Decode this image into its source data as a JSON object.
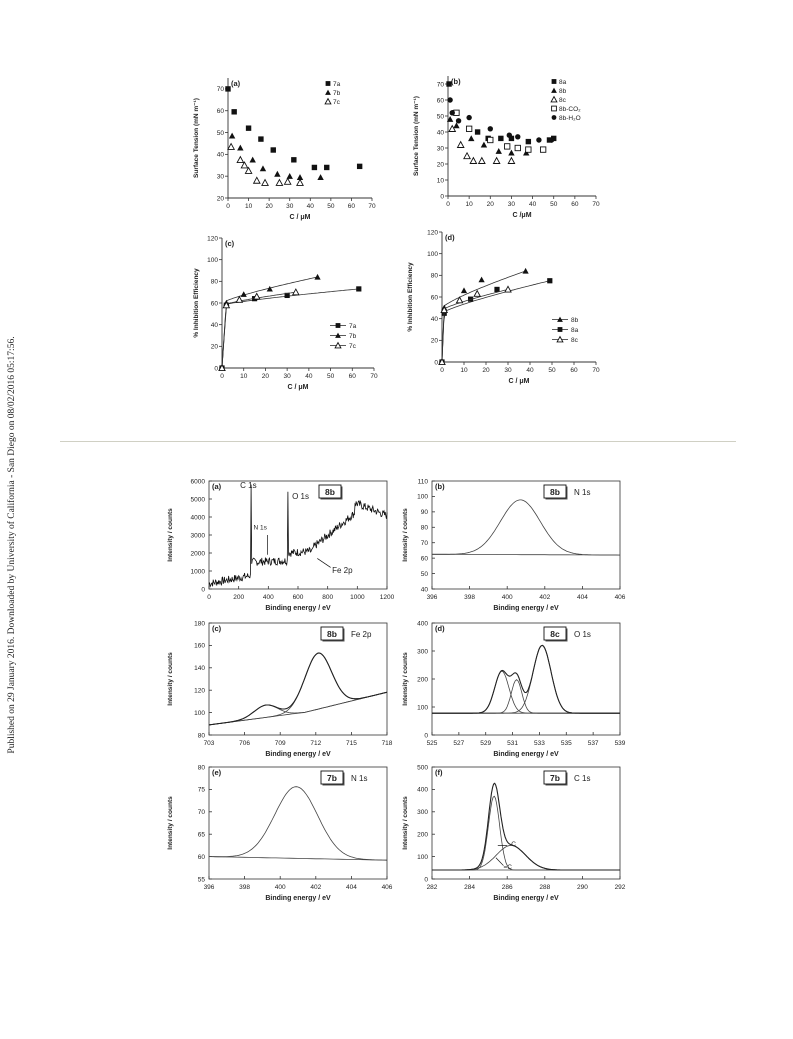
{
  "sidebar_text": "Published on 29 January 2016. Downloaded by University of California - San Diego on 08/02/2016 05:17:56.",
  "chart_data": [
    {
      "panel": "(a)",
      "type": "scatter",
      "ylabel": "Surface Tension (mN m⁻¹)",
      "xlabel": "C / μM",
      "xlim": [
        0,
        70
      ],
      "ylim": [
        20,
        75
      ],
      "xticks": [
        0,
        10,
        20,
        30,
        40,
        50,
        60,
        70
      ],
      "yticks": [
        20,
        30,
        40,
        50,
        60,
        70
      ],
      "legend": "top-right",
      "series": [
        {
          "name": "7a",
          "marker": "square",
          "x": [
            0,
            3,
            10,
            16,
            22,
            32,
            42,
            48,
            64
          ],
          "y": [
            70,
            59.5,
            52,
            47,
            42,
            37.5,
            34,
            34,
            34.5
          ]
        },
        {
          "name": "7b",
          "marker": "triangle",
          "x": [
            2,
            6,
            12,
            17,
            24,
            30,
            35,
            45
          ],
          "y": [
            48.5,
            43,
            37.5,
            33.5,
            31,
            30,
            29.5,
            29.5
          ]
        },
        {
          "name": "7c",
          "marker": "triangle-open",
          "x": [
            1.5,
            6,
            8,
            10,
            14,
            18,
            25,
            29,
            35
          ],
          "y": [
            43.5,
            37.5,
            35,
            32.5,
            28,
            27,
            27,
            27.5,
            27
          ]
        }
      ]
    },
    {
      "panel": "(b)",
      "type": "scatter",
      "ylabel": "Surface Tension (mN m⁻¹)",
      "xlabel": "C /μM",
      "xlim": [
        0,
        70
      ],
      "ylim": [
        0,
        75
      ],
      "xticks": [
        0,
        10,
        20,
        30,
        40,
        50,
        60,
        70
      ],
      "yticks": [
        0,
        10,
        20,
        30,
        40,
        50,
        60,
        70
      ],
      "legend": "top-right",
      "series": [
        {
          "name": "8a",
          "marker": "square",
          "x": [
            0.5,
            3,
            14,
            19,
            25,
            30,
            38,
            48,
            50
          ],
          "y": [
            70,
            52,
            40,
            36,
            36,
            36,
            34,
            35,
            36
          ]
        },
        {
          "name": "8b",
          "marker": "triangle",
          "x": [
            1,
            4,
            11,
            17,
            24,
            30,
            37
          ],
          "y": [
            48,
            44,
            36,
            32,
            28,
            27,
            27
          ]
        },
        {
          "name": "8c",
          "marker": "triangle-open",
          "x": [
            2,
            6,
            9,
            12,
            16,
            23,
            30
          ],
          "y": [
            42,
            32,
            25,
            22,
            22,
            22,
            22
          ]
        },
        {
          "name": "8b-CO₂",
          "marker": "square-open",
          "x": [
            4,
            10,
            20,
            28,
            33,
            38,
            45
          ],
          "y": [
            52,
            42,
            35,
            31,
            30,
            29,
            29
          ]
        },
        {
          "name": "8b-H₂O",
          "marker": "circle",
          "x": [
            1,
            2,
            5,
            10,
            20,
            29,
            33,
            43,
            49
          ],
          "y": [
            60,
            52,
            47,
            49,
            42,
            38,
            37,
            35,
            35
          ]
        }
      ]
    },
    {
      "panel": "(c)",
      "type": "line",
      "ylabel": "% Inhibition Efficiency",
      "xlabel": "C / μM",
      "xlim": [
        0,
        70
      ],
      "ylim": [
        0,
        120
      ],
      "xticks": [
        0,
        10,
        20,
        30,
        40,
        50,
        60,
        70
      ],
      "yticks": [
        0,
        20,
        40,
        60,
        80,
        100,
        120
      ],
      "legend": "bottom-right",
      "series": [
        {
          "name": "7a",
          "marker": "square",
          "x": [
            0,
            2,
            15,
            30,
            63
          ],
          "y": [
            0,
            58,
            64,
            67,
            73
          ]
        },
        {
          "name": "7b",
          "marker": "triangle",
          "x": [
            0,
            2,
            10,
            22,
            44
          ],
          "y": [
            0,
            60,
            68,
            73,
            84
          ]
        },
        {
          "name": "7c",
          "marker": "triangle-open",
          "x": [
            0,
            2,
            8,
            16,
            34
          ],
          "y": [
            0,
            58,
            63,
            66,
            70
          ]
        }
      ]
    },
    {
      "panel": "(d)",
      "type": "line",
      "ylabel": "% Inhibition Efficiency",
      "xlabel": "C / μM",
      "xlim": [
        0,
        70
      ],
      "ylim": [
        0,
        120
      ],
      "xticks": [
        0,
        10,
        20,
        30,
        40,
        50,
        60,
        70
      ],
      "yticks": [
        0,
        20,
        40,
        60,
        80,
        100,
        120
      ],
      "legend": "bottom-right",
      "series": [
        {
          "name": "8b",
          "marker": "triangle",
          "x": [
            0,
            1,
            10,
            18,
            38
          ],
          "y": [
            0,
            50,
            66,
            76,
            84
          ]
        },
        {
          "name": "8a",
          "marker": "square",
          "x": [
            0,
            1,
            13,
            25,
            49
          ],
          "y": [
            0,
            45,
            58,
            67,
            75
          ]
        },
        {
          "name": "8c",
          "marker": "triangle-open",
          "x": [
            0,
            1,
            8,
            16,
            30
          ],
          "y": [
            0,
            48,
            57,
            63,
            67
          ]
        }
      ]
    }
  ],
  "xps_panels": [
    {
      "panel": "(a)",
      "sample": "8b",
      "xlabel": "Binding energy / eV",
      "ylabel": "Intensity / counts",
      "xlim": [
        0,
        1200
      ],
      "ylim": [
        0,
        6000
      ],
      "xticks": [
        0,
        200,
        400,
        600,
        800,
        1000,
        1200
      ],
      "yticks": [
        0,
        1000,
        2000,
        3000,
        4000,
        5000,
        6000
      ],
      "labels": [
        "C 1s",
        "O 1s",
        "N 1s",
        "Fe 2p"
      ]
    },
    {
      "panel": "(b)",
      "sample": "8b",
      "element": "N 1s",
      "xlabel": "Binding energy / eV",
      "ylabel": "Intensity / counts",
      "xlim": [
        396,
        406
      ],
      "ylim": [
        40,
        110
      ],
      "xticks": [
        396,
        398,
        400,
        402,
        404,
        406
      ],
      "yticks": [
        40,
        50,
        60,
        70,
        80,
        90,
        100,
        110
      ]
    },
    {
      "panel": "(c)",
      "sample": "8b",
      "element": "Fe 2p",
      "xlabel": "Binding energy / eV",
      "ylabel": "Intensity / counts",
      "xlim": [
        703,
        718
      ],
      "ylim": [
        80,
        180
      ],
      "xticks": [
        703,
        706,
        709,
        712,
        715,
        718
      ],
      "yticks": [
        80,
        100,
        120,
        140,
        160,
        180
      ]
    },
    {
      "panel": "(d)",
      "sample": "8c",
      "element": "O 1s",
      "xlabel": "Binding energy / eV",
      "ylabel": "Intensity / counts",
      "xlim": [
        525,
        539
      ],
      "ylim": [
        0,
        400
      ],
      "xticks": [
        525,
        527,
        529,
        531,
        533,
        535,
        537,
        539
      ],
      "yticks": [
        0,
        100,
        200,
        300,
        400
      ]
    },
    {
      "panel": "(e)",
      "sample": "7b",
      "element": "N 1s",
      "xlabel": "Binding energy / eV",
      "ylabel": "Intensity / counts",
      "xlim": [
        396,
        406
      ],
      "ylim": [
        55,
        80
      ],
      "xticks": [
        396,
        398,
        400,
        402,
        404,
        406
      ],
      "yticks": [
        55,
        60,
        65,
        70,
        75,
        80
      ]
    },
    {
      "panel": "(f)",
      "sample": "7b",
      "element": "C 1s",
      "xlabel": "Binding  energy / eV",
      "ylabel": "Intensity / counts",
      "xlim": [
        282,
        292
      ],
      "ylim": [
        0,
        500
      ],
      "xticks": [
        282,
        284,
        286,
        288,
        290,
        292
      ],
      "yticks": [
        0,
        100,
        200,
        300,
        400,
        500
      ],
      "labels": [
        "-C",
        "=C"
      ]
    }
  ]
}
